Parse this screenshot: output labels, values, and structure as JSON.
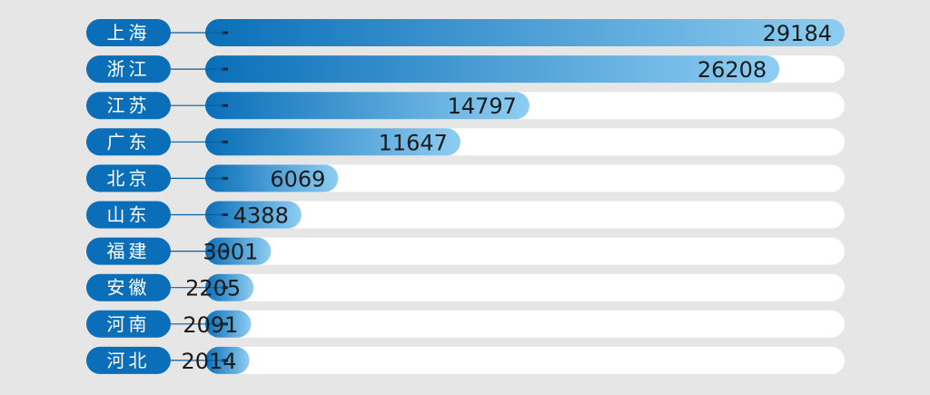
{
  "chart_data": {
    "type": "bar",
    "orientation": "horizontal",
    "categories": [
      "上海",
      "浙江",
      "江苏",
      "广东",
      "北京",
      "山东",
      "福建",
      "安徽",
      "河南",
      "河北"
    ],
    "values": [
      29184,
      26208,
      14797,
      11647,
      6069,
      4388,
      3001,
      2205,
      2091,
      2014
    ],
    "xlim": [
      0,
      29184
    ],
    "grid": false,
    "legend": "none"
  },
  "colors": {
    "background": "#e6e6e6",
    "label_pill": "#0a6fb8",
    "bar_start": "#0a6fb8",
    "bar_end": "#8ecdf2",
    "track": "#ffffff",
    "value_text": "#1b1b1b"
  }
}
